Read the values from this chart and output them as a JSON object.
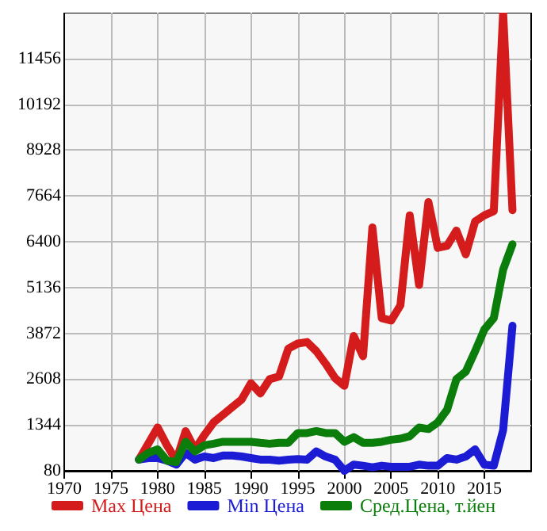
{
  "chart_data": {
    "type": "line",
    "x": [
      1978,
      1979,
      1980,
      1981,
      1982,
      1983,
      1984,
      1985,
      1986,
      1987,
      1988,
      1989,
      1990,
      1991,
      1992,
      1993,
      1994,
      1995,
      1996,
      1997,
      1998,
      1999,
      2000,
      2001,
      2002,
      2003,
      2004,
      2005,
      2006,
      2007,
      2008,
      2009,
      2010,
      2011,
      2012,
      2013,
      2014,
      2015,
      2016,
      2017,
      2018
    ],
    "series": [
      {
        "name": "Max Цена",
        "color": "#d41c1c",
        "values": [
          388,
          826,
          1273,
          782,
          360,
          1175,
          670,
          1063,
          1415,
          1625,
          1836,
          2047,
          2494,
          2214,
          2608,
          2680,
          3450,
          3590,
          3632,
          3380,
          3030,
          2637,
          2425,
          3800,
          3240,
          6793,
          4293,
          4223,
          4645,
          7129,
          5207,
          7495,
          6231,
          6286,
          6707,
          6050,
          6960,
          7129,
          7242,
          12720,
          7271
        ]
      },
      {
        "name": "Min Цена",
        "color": "#1c1cd4",
        "values": [
          388,
          431,
          431,
          360,
          249,
          573,
          388,
          473,
          431,
          501,
          501,
          473,
          431,
          388,
          388,
          360,
          388,
          400,
          388,
          614,
          473,
          388,
          80,
          249,
          220,
          177,
          220,
          192,
          192,
          192,
          249,
          220,
          220,
          431,
          388,
          473,
          670,
          249,
          220,
          1203,
          4082
        ]
      },
      {
        "name": "Сред.Цена, т.йен",
        "color": "#0a7d0a",
        "values": [
          388,
          573,
          670,
          360,
          318,
          880,
          614,
          782,
          826,
          880,
          880,
          880,
          880,
          850,
          826,
          853,
          853,
          1120,
          1120,
          1175,
          1120,
          1120,
          880,
          1007,
          853,
          853,
          880,
          936,
          965,
          1035,
          1273,
          1232,
          1415,
          1765,
          2608,
          2818,
          3380,
          3985,
          4293,
          5628,
          6328
        ]
      }
    ],
    "xlim": [
      1970,
      2020
    ],
    "xticks": [
      1970,
      1975,
      1980,
      1985,
      1990,
      1995,
      2000,
      2005,
      2010,
      2015
    ],
    "ylim": [
      80,
      12720
    ],
    "yticks": [
      80,
      1344,
      2608,
      3872,
      5136,
      6400,
      7664,
      8928,
      10192,
      11456
    ],
    "grid": true,
    "legend": "bottom",
    "marker": "none",
    "line_style": "solid"
  }
}
